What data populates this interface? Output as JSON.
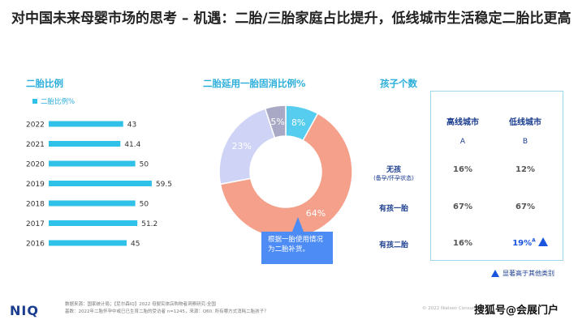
{
  "title": "对中国未来母婴市场的思考 – 机遇：二胎/三胎家庭占比提升，低线城市生活稳定二胎比更高",
  "chart_data": [
    {
      "type": "bar",
      "title": "二胎比例",
      "legend": [
        "二胎比例%"
      ],
      "categories": [
        "2022",
        "2021",
        "2020",
        "2019",
        "2018",
        "2017",
        "2016"
      ],
      "values": [
        43,
        41.4,
        50,
        59.5,
        50,
        51.2,
        45
      ],
      "color": "#2fc1e8"
    },
    {
      "type": "pie",
      "title": "二胎延用一胎固消比例%",
      "slices": [
        {
          "label": "8%",
          "value": 8,
          "color": "#56cdee"
        },
        {
          "label": "64%",
          "value": 64,
          "color": "#f4a08a"
        },
        {
          "label": "23%",
          "value": 23,
          "color": "#cfd3f5"
        },
        {
          "label": "5%",
          "value": 5,
          "color": "#a9a9c5"
        }
      ],
      "callout": "根据一胎使用情况为二胎补货。"
    },
    {
      "type": "table",
      "title": "孩子个数",
      "columns": [
        {
          "name": "高线城市",
          "letter": "A"
        },
        {
          "name": "低线城市",
          "letter": "B"
        }
      ],
      "rows": [
        {
          "label": "无孩",
          "sublabel": "(备孕/怀孕状态)",
          "values": [
            "16%",
            "12%"
          ]
        },
        {
          "label": "有孩一胎",
          "sublabel": "",
          "values": [
            "67%",
            "67%"
          ]
        },
        {
          "label": "有孩二胎",
          "sublabel": "",
          "values": [
            "16%",
            "19%"
          ],
          "marker": "A"
        }
      ],
      "note": "显著高于其他类别"
    }
  ],
  "footer": {
    "logo": "NIQ",
    "source_line1": "数据来源：国家统计局；【尼尔森IQ】2022 母婴实体店购物者洞察研究-全国",
    "source_line2": "基数：2022年二胎怀孕中或已已生育二胎的受访者 n=1245，来源：Q60. 所有哪方式消耗二胎孩子？",
    "copyright": "© 2022 Nielsen Consumer LLC",
    "watermark": "搜狐号@会展门户"
  }
}
